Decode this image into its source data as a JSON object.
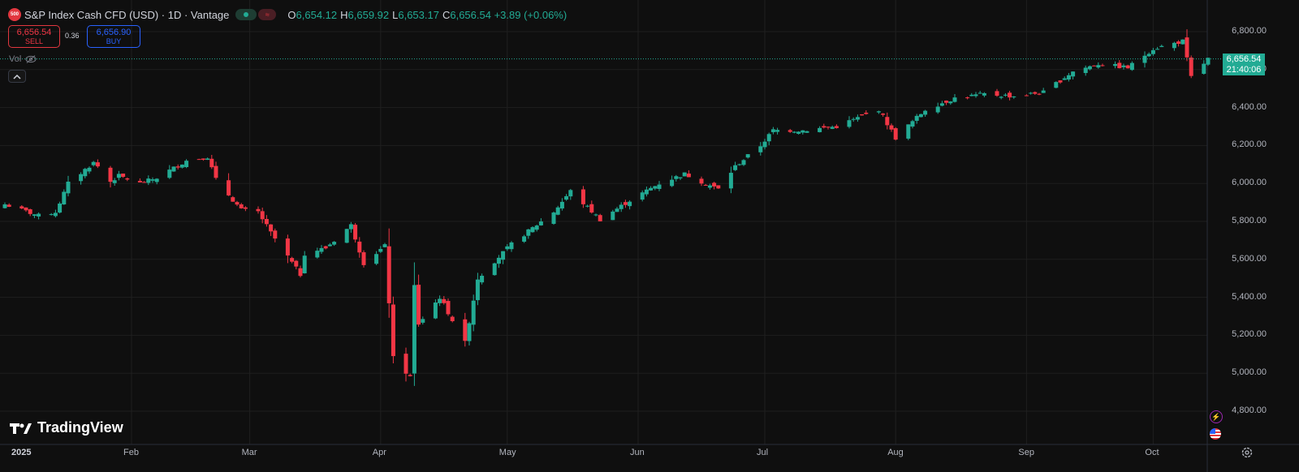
{
  "header": {
    "symbol_badge": "500",
    "title": "S&P Index Cash CFD (USD) · 1D · Vantage",
    "ohlc": [
      {
        "key": "O",
        "value": "6,654.12"
      },
      {
        "key": "H",
        "value": "6,659.92"
      },
      {
        "key": "L",
        "value": "6,653.17"
      },
      {
        "key": "C",
        "value": "6,656.54 +3.89 (+0.06%)"
      }
    ]
  },
  "trade": {
    "sell_price": "6,656.54",
    "sell_label": "SELL",
    "spread": "0.36",
    "buy_price": "6,656.90",
    "buy_label": "BUY"
  },
  "volume": {
    "label": "Vol"
  },
  "price_tag": {
    "price": "6,656.54",
    "countdown": "21:40:06"
  },
  "branding": {
    "logo_text": "TradingView"
  },
  "colors": {
    "up": "#22ab94",
    "down": "#f23645",
    "background": "#0f0f0f",
    "grid": "#1f1f1f"
  },
  "icons": [
    "symbol-logo-icon",
    "eye-off-icon",
    "chevron-up-icon",
    "lightning-icon",
    "us-flag-icon",
    "settings-icon",
    "tradingview-logo-icon"
  ],
  "chart_data": {
    "type": "candlestick",
    "title": "S&P Index Cash CFD (USD) · 1D · Vantage",
    "ylim": [
      4750,
      6850
    ],
    "y_ticks": [
      "6,800.00",
      "6,600.00",
      "6,400.00",
      "6,200.00",
      "6,000.00",
      "5,800.00",
      "5,600.00",
      "5,400.00",
      "5,200.00",
      "5,000.00",
      "4,800.00"
    ],
    "x_ticks": [
      "2025",
      "Feb",
      "Mar",
      "Apr",
      "May",
      "Jun",
      "Jul",
      "Aug",
      "Sep",
      "Oct"
    ],
    "last_price": 6656.54,
    "anchor_closes": [
      [
        "2025-01-02",
        5890
      ],
      [
        "2025-01-10",
        5830
      ],
      [
        "2025-01-14",
        5850
      ],
      [
        "2025-01-17",
        6000
      ],
      [
        "2025-01-23",
        6110
      ],
      [
        "2025-01-24",
        6090
      ],
      [
        "2025-01-27",
        6010
      ],
      [
        "2025-01-29",
        6040
      ],
      [
        "2025-02-03",
        6000
      ],
      [
        "2025-02-07",
        6030
      ],
      [
        "2025-02-14",
        6120
      ],
      [
        "2025-02-19",
        6140
      ],
      [
        "2025-02-21",
        6020
      ],
      [
        "2025-02-27",
        5860
      ],
      [
        "2025-03-03",
        5850
      ],
      [
        "2025-03-06",
        5740
      ],
      [
        "2025-03-13",
        5520
      ],
      [
        "2025-03-14",
        5630
      ],
      [
        "2025-03-19",
        5660
      ],
      [
        "2025-03-25",
        5780
      ],
      [
        "2025-03-28",
        5580
      ],
      [
        "2025-04-02",
        5670
      ],
      [
        "2025-04-04",
        5080
      ],
      [
        "2025-04-08",
        4980
      ],
      [
        "2025-04-09",
        5460
      ],
      [
        "2025-04-10",
        5260
      ],
      [
        "2025-04-15",
        5400
      ],
      [
        "2025-04-21",
        5160
      ],
      [
        "2025-04-24",
        5500
      ],
      [
        "2025-05-02",
        5680
      ],
      [
        "2025-05-12",
        5850
      ],
      [
        "2025-05-16",
        5960
      ],
      [
        "2025-05-23",
        5810
      ],
      [
        "2025-05-30",
        5910
      ],
      [
        "2025-06-06",
        6000
      ],
      [
        "2025-06-12",
        6050
      ],
      [
        "2025-06-20",
        5970
      ],
      [
        "2025-06-24",
        6090
      ],
      [
        "2025-06-30",
        6200
      ],
      [
        "2025-07-03",
        6280
      ],
      [
        "2025-07-10",
        6280
      ],
      [
        "2025-07-18",
        6300
      ],
      [
        "2025-07-28",
        6390
      ],
      [
        "2025-08-01",
        6240
      ],
      [
        "2025-08-08",
        6390
      ],
      [
        "2025-08-15",
        6450
      ],
      [
        "2025-08-22",
        6470
      ],
      [
        "2025-08-29",
        6460
      ],
      [
        "2025-09-05",
        6480
      ],
      [
        "2025-09-12",
        6590
      ],
      [
        "2025-09-18",
        6630
      ],
      [
        "2025-09-25",
        6610
      ],
      [
        "2025-10-01",
        6710
      ],
      [
        "2025-10-08",
        6750
      ],
      [
        "2025-10-10",
        6560
      ],
      [
        "2025-10-14",
        6656.54
      ]
    ]
  }
}
